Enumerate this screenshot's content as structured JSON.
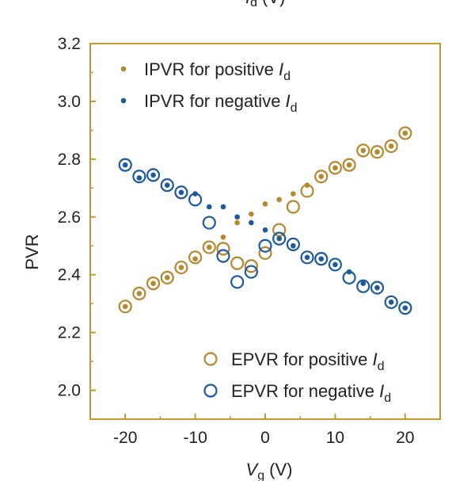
{
  "chart_data": {
    "type": "scatter",
    "xlabel": "V",
    "xlabel_sub": "g",
    "xlabel_unit": "(V)",
    "ylabel": "PVR",
    "xlim": [
      -25,
      25
    ],
    "ylim": [
      1.9,
      3.2
    ],
    "xticks": [
      -20,
      -10,
      0,
      10,
      20
    ],
    "xtick_labels": [
      "-20",
      "-10",
      "0",
      "10",
      "20"
    ],
    "yticks": [
      2.0,
      2.2,
      2.4,
      2.6,
      2.8,
      3.0,
      3.2
    ],
    "ytick_labels": [
      "2.0",
      "2.2",
      "2.4",
      "2.6",
      "2.8",
      "3.0",
      "3.2"
    ],
    "frame_color": "#c8962a",
    "grid": false,
    "top_clipped_label": "I",
    "top_clipped_sub": "d",
    "top_clipped_unit": "(V)",
    "series": [
      {
        "name": "IPVR for positive ",
        "name_italic": "I",
        "name_sub": "d",
        "marker": "dot",
        "color": "#b8862b",
        "x": [
          -20,
          -18,
          -16,
          -14,
          -12,
          -10,
          -8,
          -6,
          -4,
          -2,
          0,
          2,
          4,
          6,
          8,
          10,
          12,
          14,
          16,
          18,
          20
        ],
        "y": [
          2.29,
          2.335,
          2.37,
          2.39,
          2.425,
          2.455,
          2.495,
          2.53,
          2.58,
          2.61,
          2.645,
          2.66,
          2.68,
          2.71,
          2.74,
          2.77,
          2.78,
          2.83,
          2.825,
          2.845,
          2.89
        ]
      },
      {
        "name": "IPVR for negative ",
        "name_italic": "I",
        "name_sub": "d",
        "marker": "dot",
        "color": "#1a5a9e",
        "x": [
          -20,
          -18,
          -16,
          -14,
          -12,
          -10,
          -8,
          -6,
          -4,
          -2,
          0,
          2,
          4,
          6,
          8,
          10,
          12,
          14,
          16,
          18,
          20
        ],
        "y": [
          2.78,
          2.735,
          2.745,
          2.71,
          2.685,
          2.68,
          2.635,
          2.635,
          2.6,
          2.58,
          2.555,
          2.525,
          2.5,
          2.46,
          2.455,
          2.435,
          2.41,
          2.37,
          2.355,
          2.305,
          2.285
        ]
      },
      {
        "name": "EPVR for positive ",
        "name_italic": "I",
        "name_sub": "d",
        "marker": "ring",
        "color": "#b8862b",
        "x": [
          -20,
          -18,
          -16,
          -14,
          -12,
          -10,
          -8,
          -6,
          -4,
          -2,
          0,
          2,
          4,
          6,
          8,
          10,
          12,
          14,
          16,
          18,
          20
        ],
        "y": [
          2.29,
          2.335,
          2.37,
          2.39,
          2.425,
          2.46,
          2.495,
          2.49,
          2.44,
          2.43,
          2.475,
          2.555,
          2.635,
          2.69,
          2.74,
          2.77,
          2.78,
          2.83,
          2.825,
          2.845,
          2.89
        ]
      },
      {
        "name": "EPVR for negative ",
        "name_italic": "I",
        "name_sub": "d",
        "marker": "ring",
        "color": "#1a5a9e",
        "x": [
          -20,
          -18,
          -16,
          -14,
          -12,
          -10,
          -8,
          -6,
          -4,
          -2,
          0,
          2,
          4,
          6,
          8,
          10,
          12,
          14,
          16,
          18,
          20
        ],
        "y": [
          2.78,
          2.74,
          2.745,
          2.71,
          2.685,
          2.66,
          2.58,
          2.465,
          2.375,
          2.41,
          2.5,
          2.525,
          2.505,
          2.46,
          2.455,
          2.435,
          2.39,
          2.36,
          2.355,
          2.305,
          2.285
        ]
      }
    ],
    "legends": [
      {
        "location": "top-left",
        "series": [
          0,
          1
        ]
      },
      {
        "location": "bottom-right",
        "series": [
          2,
          3
        ]
      }
    ]
  }
}
